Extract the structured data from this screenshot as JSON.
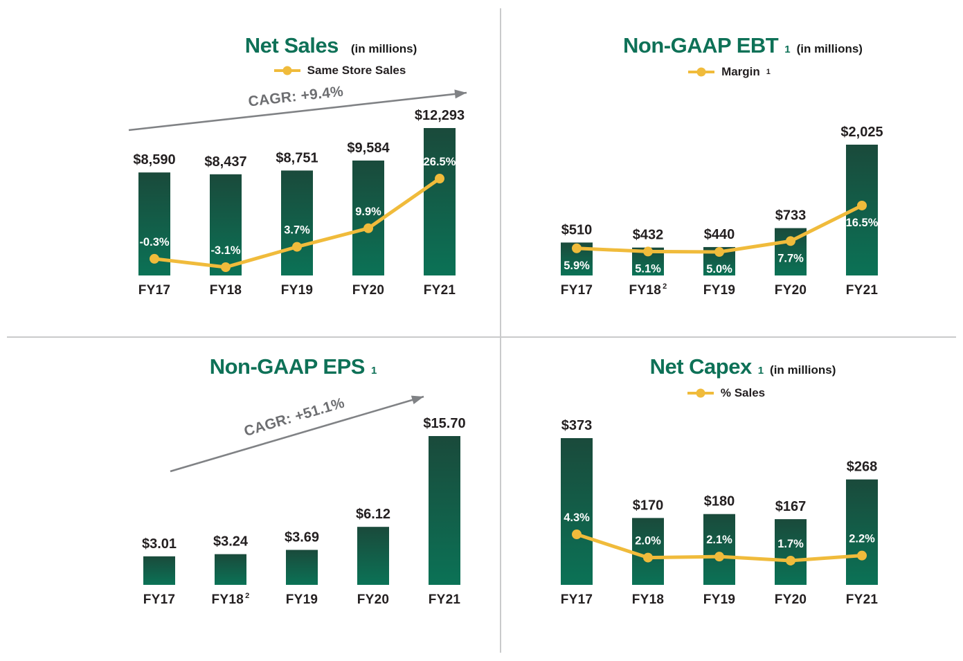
{
  "page": {
    "background": "#ffffff",
    "divider_color": "#c9cacb"
  },
  "colors": {
    "title_green": "#0e7157",
    "bar_gradient_top": "#1a4a3b",
    "bar_gradient_bottom": "#0b7256",
    "line_gold": "#f0bb3b",
    "text_dark": "#231f20",
    "pct_label_white": "#ffffff",
    "arrow_gray": "#808285",
    "cagr_text_gray": "#6d6e71"
  },
  "chart_data": [
    {
      "id": "net-sales",
      "type": "bar",
      "title": "Net Sales",
      "title_sup": "",
      "unit_note": "(in millions)",
      "legend": {
        "label": "Same Store Sales",
        "sup": ""
      },
      "cagr_label": "CAGR: +9.4%",
      "categories": [
        "FY17",
        "FY18",
        "FY19",
        "FY20",
        "FY21"
      ],
      "category_sups": [
        "",
        "",
        "",
        "",
        ""
      ],
      "bars": {
        "values": [
          8590,
          8437,
          8751,
          9584,
          12293
        ],
        "labels": [
          "$8,590",
          "$8,437",
          "$8,751",
          "$9,584",
          "$12,293"
        ]
      },
      "line": {
        "name": "Same Store Sales",
        "values_pct": [
          -0.3,
          -3.1,
          3.7,
          9.9,
          26.5
        ],
        "labels": [
          "-0.3%",
          "-3.1%",
          "3.7%",
          "9.9%",
          "26.5%"
        ]
      }
    },
    {
      "id": "non-gaap-ebt",
      "type": "bar",
      "title": "Non-GAAP EBT",
      "title_sup": "1",
      "unit_note": "(in millions)",
      "legend": {
        "label": "Margin",
        "sup": "1"
      },
      "cagr_label": "",
      "categories": [
        "FY17",
        "FY18",
        "FY19",
        "FY20",
        "FY21"
      ],
      "category_sups": [
        "",
        "2",
        "",
        "",
        ""
      ],
      "bars": {
        "values": [
          510,
          432,
          440,
          733,
          2025
        ],
        "labels": [
          "$510",
          "$432",
          "$440",
          "$733",
          "$2,025"
        ]
      },
      "line": {
        "name": "Margin",
        "values_pct": [
          5.9,
          5.1,
          5.0,
          7.7,
          16.5
        ],
        "labels": [
          "5.9%",
          "5.1%",
          "5.0%",
          "7.7%",
          "16.5%"
        ]
      }
    },
    {
      "id": "non-gaap-eps",
      "type": "bar",
      "title": "Non-GAAP EPS",
      "title_sup": "1",
      "unit_note": "",
      "legend": null,
      "cagr_label": "CAGR: +51.1%",
      "categories": [
        "FY17",
        "FY18",
        "FY19",
        "FY20",
        "FY21"
      ],
      "category_sups": [
        "",
        "2",
        "",
        "",
        ""
      ],
      "bars": {
        "values": [
          3.01,
          3.24,
          3.69,
          6.12,
          15.7
        ],
        "labels": [
          "$3.01",
          "$3.24",
          "$3.69",
          "$6.12",
          "$15.70"
        ]
      },
      "line": null
    },
    {
      "id": "net-capex",
      "type": "bar",
      "title": "Net Capex",
      "title_sup": "1",
      "unit_note": "(in millions)",
      "legend": {
        "label": "% Sales",
        "sup": ""
      },
      "cagr_label": "",
      "categories": [
        "FY17",
        "FY18",
        "FY19",
        "FY20",
        "FY21"
      ],
      "category_sups": [
        "",
        "",
        "",
        "",
        ""
      ],
      "bars": {
        "values": [
          373,
          170,
          180,
          167,
          268
        ],
        "labels": [
          "$373",
          "$170",
          "$180",
          "$167",
          "$268"
        ]
      },
      "line": {
        "name": "% Sales",
        "values_pct": [
          4.3,
          2.0,
          2.1,
          1.7,
          2.2
        ],
        "labels": [
          "4.3%",
          "2.0%",
          "2.1%",
          "1.7%",
          "2.2%"
        ]
      }
    }
  ]
}
